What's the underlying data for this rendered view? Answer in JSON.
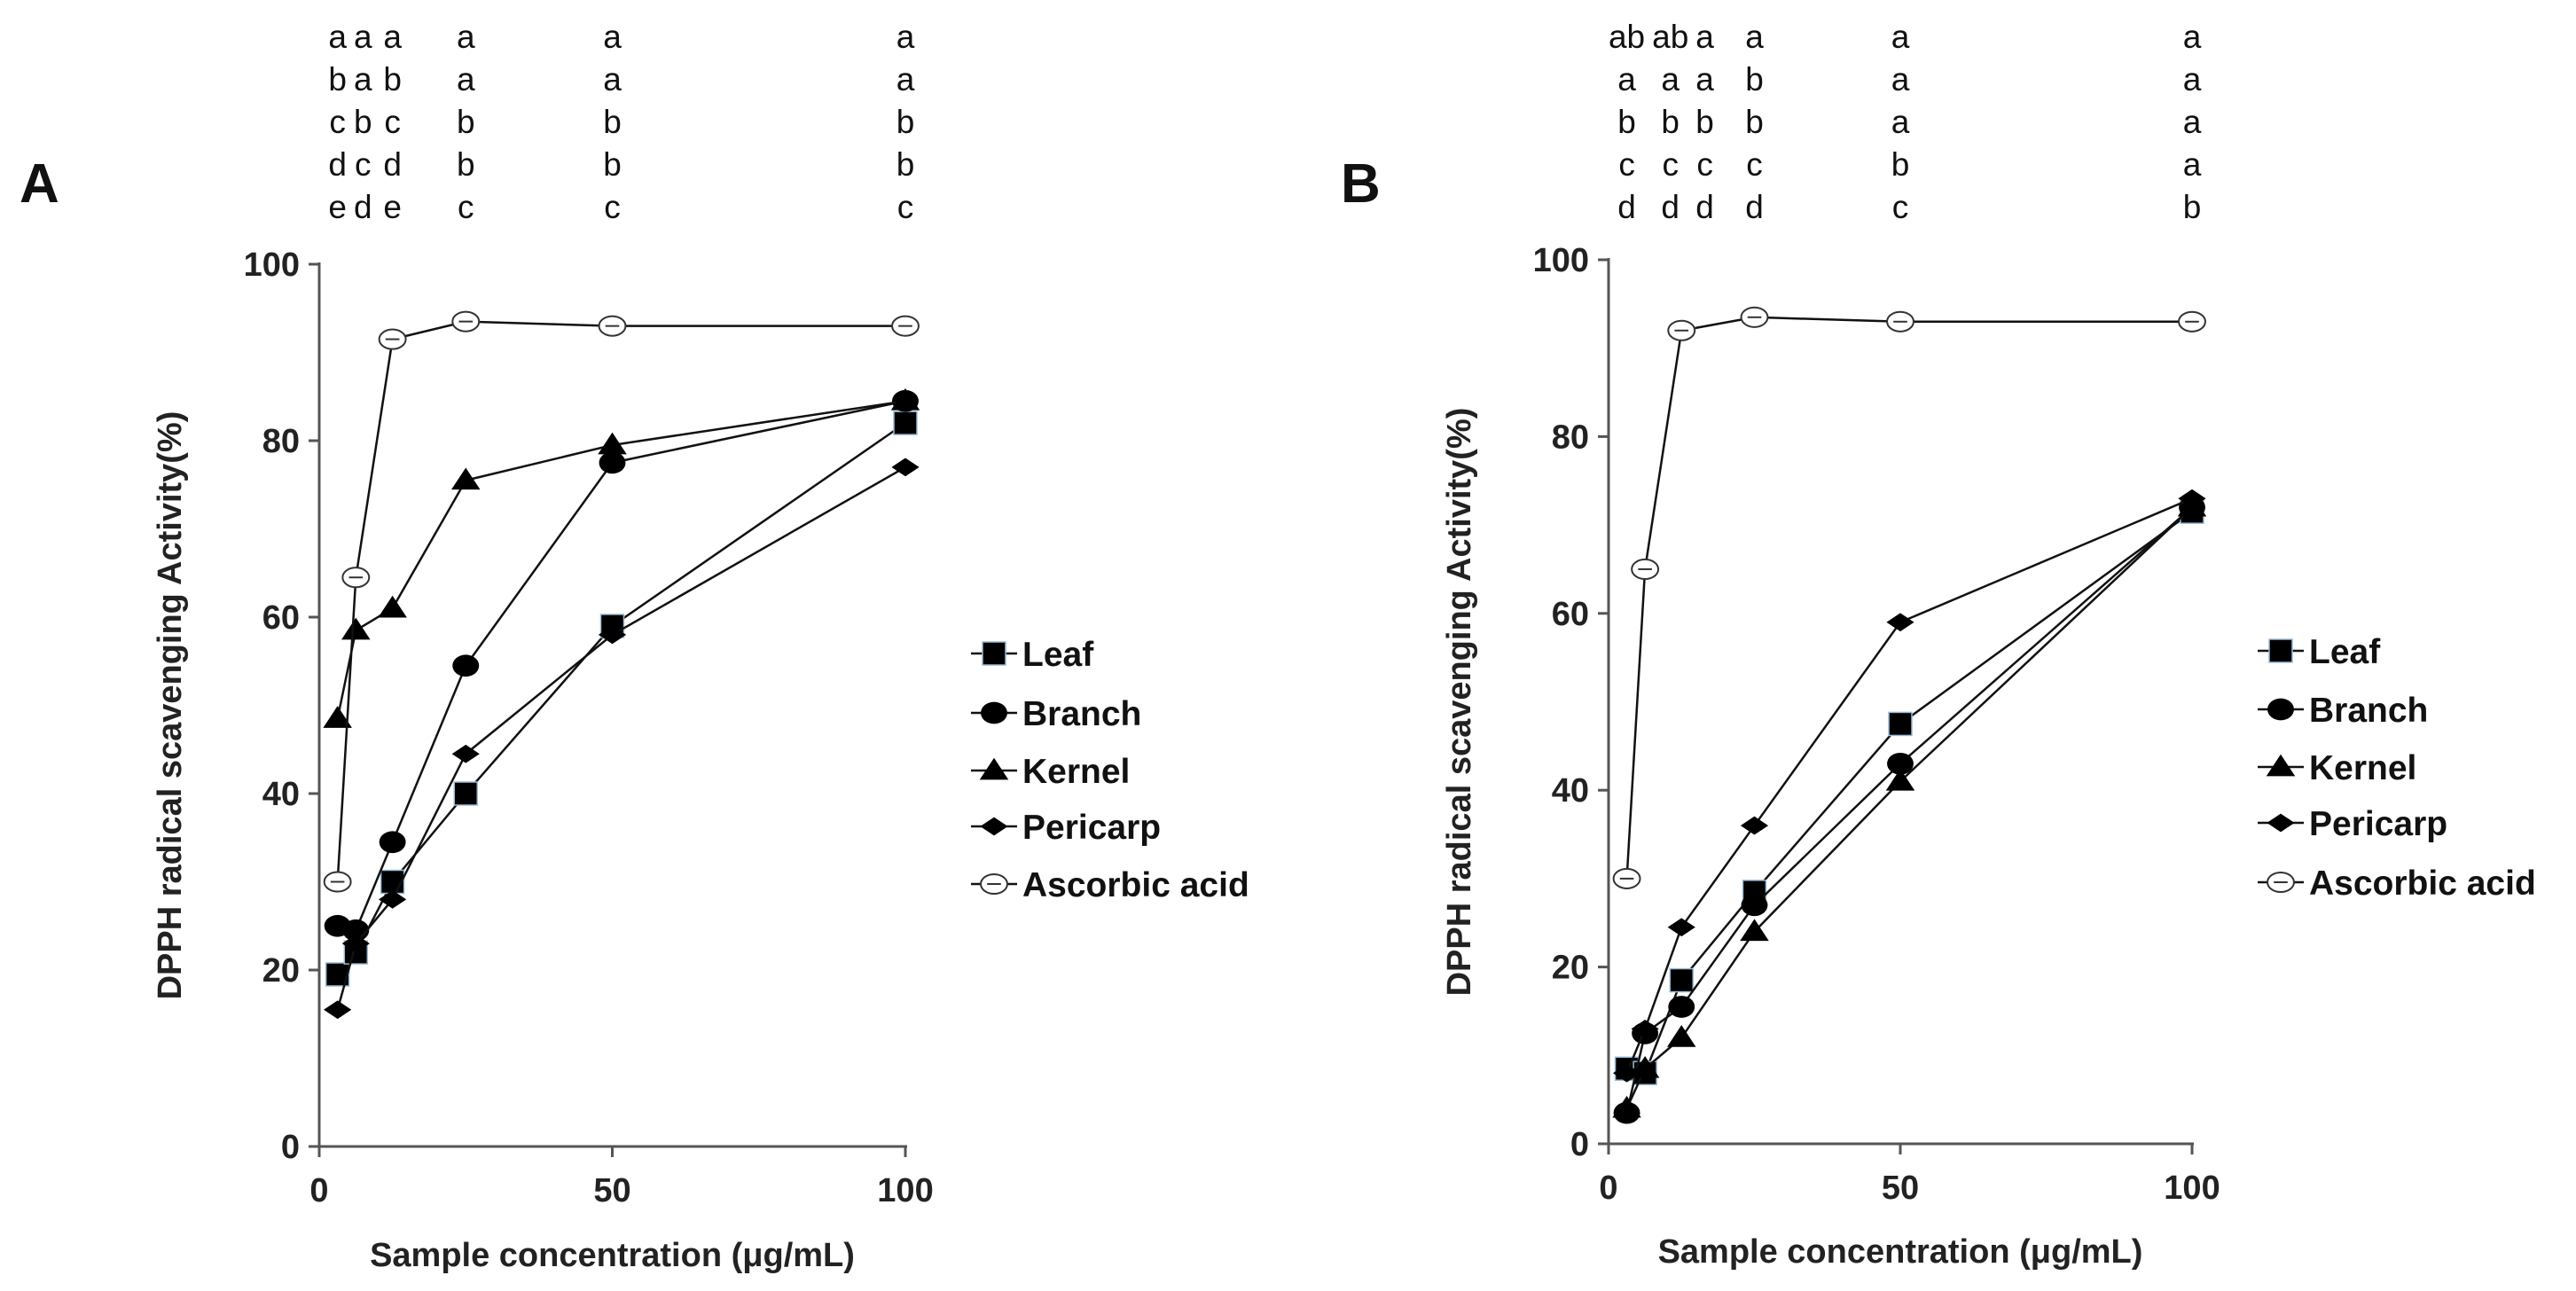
{
  "chart_data": [
    {
      "type": "line",
      "panel_label": "A",
      "xlabel": "Sample concentration (μg/mL)",
      "ylabel": "DPPH radical scavenging Activity(%)",
      "xlim": [
        0,
        100
      ],
      "ylim": [
        0,
        100
      ],
      "xticks": [
        0,
        50,
        100
      ],
      "yticks": [
        0,
        20,
        40,
        60,
        80,
        100
      ],
      "grid": false,
      "legend_position": "right",
      "x": [
        3.125,
        6.25,
        12.5,
        25,
        50,
        100
      ],
      "series": [
        {
          "name": "Leaf",
          "marker": "square",
          "values": [
            19.5,
            22,
            30,
            40,
            59,
            82
          ]
        },
        {
          "name": "Branch",
          "marker": "circle",
          "values": [
            25,
            24.5,
            34.5,
            54.5,
            77.5,
            84.5
          ]
        },
        {
          "name": "Kernel",
          "marker": "triangle",
          "values": [
            48.5,
            58.5,
            61,
            75.5,
            79.5,
            84.5
          ]
        },
        {
          "name": "Pericarp",
          "marker": "diamond",
          "values": [
            15.5,
            23,
            28,
            44.5,
            58,
            77
          ]
        },
        {
          "name": "Ascorbic acid",
          "marker": "open-circle",
          "values": [
            30,
            64.5,
            91.5,
            93.5,
            93,
            93
          ]
        }
      ],
      "significance_letters": [
        [
          "a",
          "b",
          "c",
          "d",
          "e"
        ],
        [
          "a",
          "a",
          "b",
          "c",
          "d"
        ],
        [
          "a",
          "b",
          "c",
          "d",
          "e"
        ],
        [
          "a",
          "a",
          "b",
          "b",
          "c"
        ],
        [
          "a",
          "a",
          "b",
          "b",
          "c"
        ],
        [
          "a",
          "a",
          "b",
          "b",
          "c"
        ]
      ]
    },
    {
      "type": "line",
      "panel_label": "B",
      "xlabel": "Sample concentration (μg/mL)",
      "ylabel": "DPPH radical scavenging Activity(%)",
      "xlim": [
        0,
        100
      ],
      "ylim": [
        0,
        100
      ],
      "xticks": [
        0,
        50,
        100
      ],
      "yticks": [
        0,
        20,
        40,
        60,
        80,
        100
      ],
      "grid": false,
      "legend_position": "right",
      "x": [
        3.125,
        6.25,
        12.5,
        25,
        50,
        100
      ],
      "series": [
        {
          "name": "Leaf",
          "marker": "square",
          "values": [
            8.5,
            8,
            18.5,
            28.5,
            47.5,
            71.5
          ]
        },
        {
          "name": "Branch",
          "marker": "circle",
          "values": [
            3.5,
            12.5,
            15.5,
            27,
            43,
            72
          ]
        },
        {
          "name": "Kernel",
          "marker": "triangle",
          "values": [
            4,
            8.5,
            12,
            24,
            41,
            72
          ]
        },
        {
          "name": "Pericarp",
          "marker": "diamond",
          "values": [
            8,
            13,
            24.5,
            36,
            59,
            73
          ]
        },
        {
          "name": "Ascorbic acid",
          "marker": "open-circle",
          "values": [
            30,
            65,
            92,
            93.5,
            93,
            93
          ]
        }
      ],
      "significance_letters": [
        [
          "ab",
          "a",
          "b",
          "c",
          "d"
        ],
        [
          "ab",
          "a",
          "b",
          "c",
          "d"
        ],
        [
          "a",
          "a",
          "b",
          "c",
          "d"
        ],
        [
          "a",
          "b",
          "b",
          "c",
          "d"
        ],
        [
          "a",
          "a",
          "a",
          "b",
          "c"
        ],
        [
          "a",
          "a",
          "a",
          "a",
          "b"
        ]
      ]
    }
  ]
}
